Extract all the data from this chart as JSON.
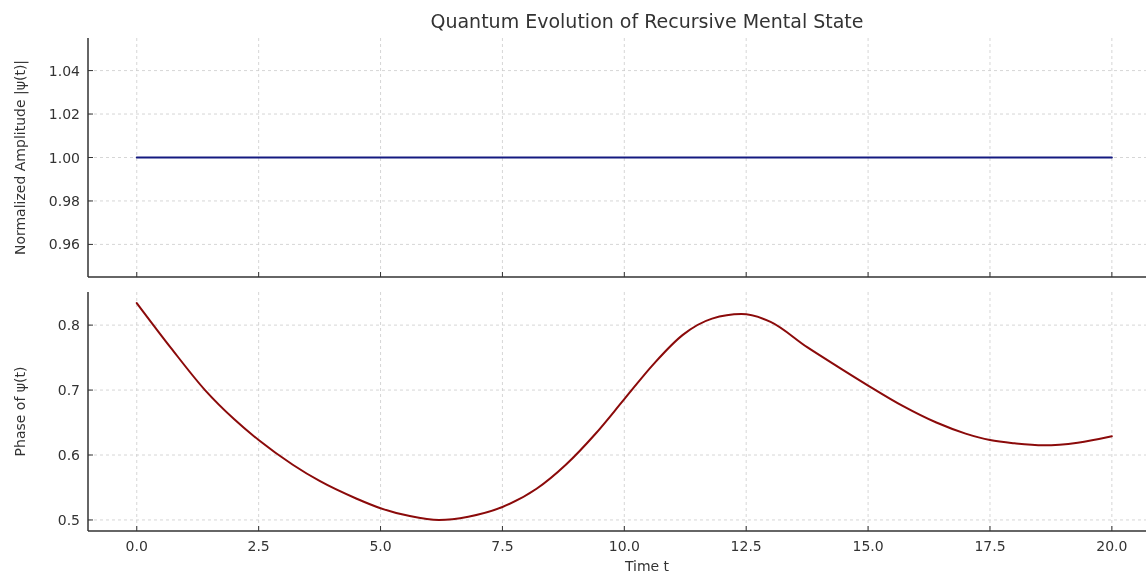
{
  "chart_data": [
    {
      "type": "line",
      "title": "Quantum Evolution of Recursive Mental State",
      "ylabel": "Normalized Amplitude |ψ(t)|",
      "xlim": [
        -1,
        20.7
      ],
      "xticks": [
        {
          "value": 0,
          "label": null
        },
        {
          "value": 2.5,
          "label": null
        },
        {
          "value": 5,
          "label": null
        },
        {
          "value": 7.5,
          "label": null
        },
        {
          "value": 10,
          "label": null
        },
        {
          "value": 12.5,
          "label": null
        },
        {
          "value": 15,
          "label": null
        },
        {
          "value": 17.5,
          "label": null
        },
        {
          "value": 20,
          "label": null
        }
      ],
      "ylim": [
        0.945,
        1.055
      ],
      "yticks": [
        {
          "value": 0.96,
          "label": "0.96"
        },
        {
          "value": 0.98,
          "label": "0.98"
        },
        {
          "value": 1,
          "label": "1.00"
        },
        {
          "value": 1.02,
          "label": "1.02"
        },
        {
          "value": 1.04,
          "label": "1.04"
        }
      ],
      "tick_labels": "y",
      "grid": true,
      "series": [
        {
          "color": "#141a80",
          "x": [
            0,
            20
          ],
          "values": [
            1,
            1
          ]
        }
      ]
    },
    {
      "type": "line",
      "xlabel": "Time t",
      "ylabel": "Phase of ψ(t)",
      "xlim": [
        -1,
        20.7
      ],
      "xticks": [
        {
          "value": 0,
          "label": "0.0"
        },
        {
          "value": 2.5,
          "label": "2.5"
        },
        {
          "value": 5,
          "label": "5.0"
        },
        {
          "value": 7.5,
          "label": "7.5"
        },
        {
          "value": 10,
          "label": "10.0"
        },
        {
          "value": 12.5,
          "label": "12.5"
        },
        {
          "value": 15,
          "label": "15.0"
        },
        {
          "value": 17.5,
          "label": "17.5"
        },
        {
          "value": 20,
          "label": "20.0"
        }
      ],
      "ylim": [
        0.483,
        0.851
      ],
      "yticks": [
        0.5,
        0.6,
        0.7,
        0.8
      ],
      "grid": true,
      "series": [
        {
          "color": "#8b0a0a",
          "x": [
            0,
            0.7,
            1.4,
            2,
            2.5,
            3.2,
            3.75,
            4.5,
            5,
            5.6,
            6.2,
            6.8,
            7.5,
            8.2,
            8.8,
            9.4,
            10,
            10.6,
            11.2,
            11.8,
            12.4,
            13,
            13.75,
            14.4,
            15,
            15.7,
            16.4,
            17,
            17.5,
            18,
            18.6,
            19.3,
            20
          ],
          "values": [
            0.834,
            0.765,
            0.7,
            0.655,
            0.623,
            0.585,
            0.56,
            0.533,
            0.518,
            0.506,
            0.5,
            0.505,
            0.52,
            0.548,
            0.585,
            0.632,
            0.686,
            0.74,
            0.785,
            0.81,
            0.817,
            0.805,
            0.766,
            0.735,
            0.707,
            0.676,
            0.65,
            0.633,
            0.623,
            0.618,
            0.615,
            0.619,
            0.629
          ]
        }
      ]
    }
  ]
}
